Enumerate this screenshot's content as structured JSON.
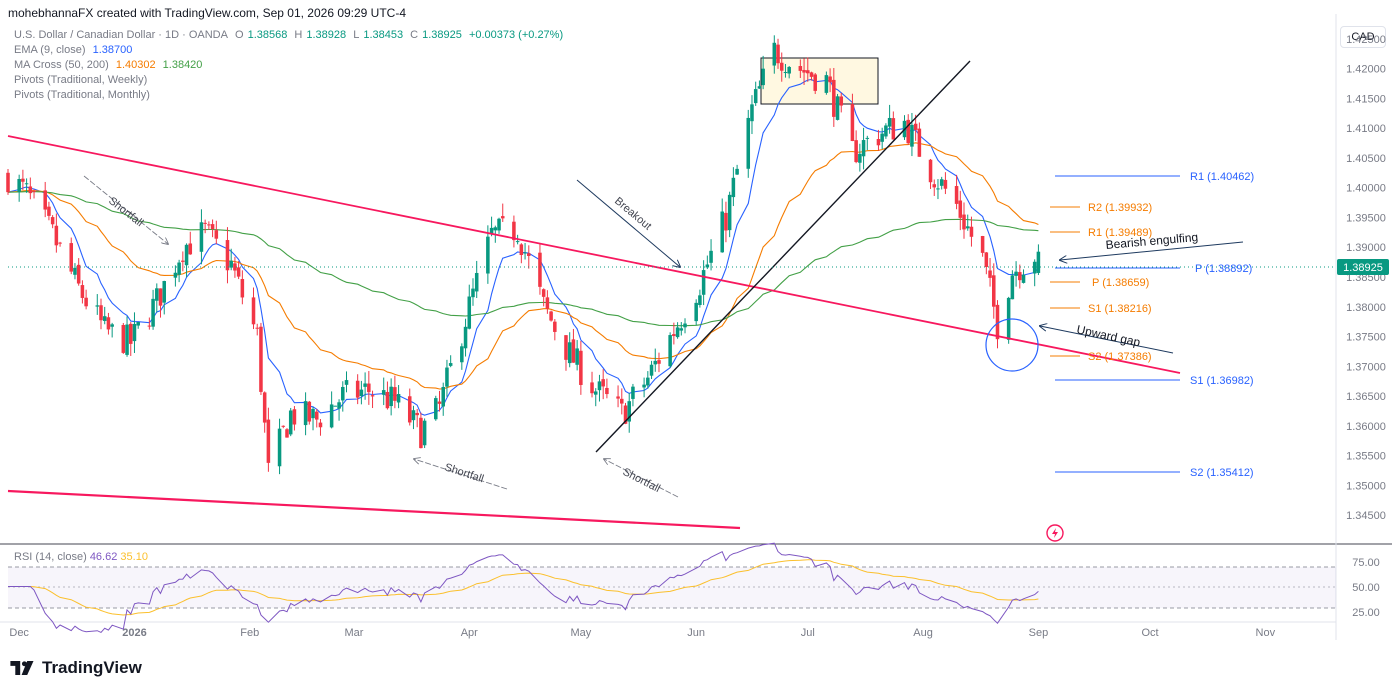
{
  "header": {
    "author_line": "mohebhannaFX created with TradingView.com, Sep 01, 2026 09:29 UTC-4",
    "currency": "CAD"
  },
  "legend": {
    "symbol": "U.S. Dollar / Canadian Dollar · 1D · OANDA",
    "o_label": "O",
    "o": "1.38568",
    "h_label": "H",
    "h": "1.38928",
    "l_label": "L",
    "l": "1.38453",
    "c_label": "C",
    "c": "1.38925",
    "change": "+0.00373 (+0.27%)",
    "ema_label": "EMA (9, close)",
    "ema_value": "1.38700",
    "ma_label": "MA Cross (50, 200)",
    "ma_value_1": "1.40302",
    "ma_value_2": "1.38420",
    "pivots_weekly": "Pivots (Traditional, Weekly)",
    "pivots_monthly": "Pivots (Traditional, Monthly)"
  },
  "price_axis": {
    "ticks": [
      "1.42500",
      "1.42000",
      "1.41500",
      "1.41000",
      "1.40500",
      "1.40000",
      "1.39500",
      "1.39000",
      "1.38500",
      "1.38000",
      "1.37500",
      "1.37000",
      "1.36500",
      "1.36000",
      "1.35500",
      "1.35000",
      "1.34500"
    ],
    "current_price_label": "1.38925"
  },
  "time_axis": {
    "labels": [
      "Dec",
      "2026",
      "Feb",
      "Mar",
      "Apr",
      "May",
      "Jun",
      "Jul",
      "Aug",
      "Sep",
      "Oct",
      "Nov"
    ]
  },
  "rsi": {
    "label": "RSI (14, close)",
    "value_1": "46.62",
    "value_2": "35.10",
    "ticks": [
      "75.00",
      "50.00",
      "25.00"
    ]
  },
  "annotations": {
    "shortfall_1": "Shortfall",
    "shortfall_2": "Shortfall",
    "shortfall_3": "Shortfall",
    "breakout": "Breakout",
    "bearish_engulfing": "Bearish engulfing",
    "upward_gap": "Upward gap"
  },
  "pivots": {
    "monthly_r1": "R1 (1.40462)",
    "monthly_p": "P (1.38892)",
    "monthly_s1": "S1 (1.36982)",
    "monthly_s2": "S2 (1.35412)",
    "weekly_r2": "R2 (1.39932)",
    "weekly_r1": "R1 (1.39489)",
    "weekly_p": "P (1.38659)",
    "weekly_s1": "S1 (1.38216)",
    "weekly_s2": "S2 (1.37386)"
  },
  "colors": {
    "up": "#089981",
    "down": "#f23645",
    "ema": "#2962ff",
    "ma50": "#f57c00",
    "ma200": "#43a047",
    "trendline": "#f7185e",
    "pivot_monthly": "#2962ff",
    "pivot_weekly": "#f57c00",
    "rsi": "#7e57c2",
    "rsi_ma": "#fbc02d"
  },
  "brand": "TradingView",
  "chart_data": {
    "type": "candlestick",
    "title": "U.S. Dollar / Canadian Dollar · 1D · OANDA",
    "ylim": [
      1.3425,
      1.4275
    ],
    "y_ticks": [
      1.425,
      1.42,
      1.415,
      1.41,
      1.405,
      1.4,
      1.395,
      1.39,
      1.385,
      1.38,
      1.375,
      1.37,
      1.365,
      1.36,
      1.355,
      1.35,
      1.345
    ],
    "x_labels": [
      "Dec",
      "2026",
      "Feb",
      "Mar",
      "Apr",
      "May",
      "Jun",
      "Jul",
      "Aug",
      "Sep",
      "Oct",
      "Nov"
    ],
    "close_path": [
      [
        "2025-11-28",
        1.402
      ],
      [
        "2025-12-03",
        1.399
      ],
      [
        "2025-12-10",
        1.392
      ],
      [
        "2025-12-17",
        1.383
      ],
      [
        "2025-12-24",
        1.376
      ],
      [
        "2025-12-31",
        1.374
      ],
      [
        "2026-01-07",
        1.381
      ],
      [
        "2026-01-14",
        1.39
      ],
      [
        "2026-01-20",
        1.3925
      ],
      [
        "2026-01-27",
        1.387
      ],
      [
        "2026-02-03",
        1.375
      ],
      [
        "2026-02-06",
        1.352
      ],
      [
        "2026-02-12",
        1.362
      ],
      [
        "2026-02-19",
        1.361
      ],
      [
        "2026-02-26",
        1.365
      ],
      [
        "2026-03-05",
        1.366
      ],
      [
        "2026-03-12",
        1.364
      ],
      [
        "2026-03-19",
        1.359
      ],
      [
        "2026-03-24",
        1.363
      ],
      [
        "2026-03-31",
        1.378
      ],
      [
        "2026-04-07",
        1.392
      ],
      [
        "2026-04-14",
        1.393
      ],
      [
        "2026-04-21",
        1.38
      ],
      [
        "2026-04-28",
        1.372
      ],
      [
        "2026-05-05",
        1.366
      ],
      [
        "2026-05-12",
        1.362
      ],
      [
        "2026-05-19",
        1.368
      ],
      [
        "2026-05-26",
        1.376
      ],
      [
        "2026-06-02",
        1.384
      ],
      [
        "2026-06-09",
        1.395
      ],
      [
        "2026-06-16",
        1.413
      ],
      [
        "2026-06-22",
        1.423
      ],
      [
        "2026-06-29",
        1.42
      ],
      [
        "2026-07-06",
        1.418
      ],
      [
        "2026-07-13",
        1.406
      ],
      [
        "2026-07-20",
        1.409
      ],
      [
        "2026-07-27",
        1.411
      ],
      [
        "2026-08-03",
        1.403
      ],
      [
        "2026-08-10",
        1.397
      ],
      [
        "2026-08-17",
        1.388
      ],
      [
        "2026-08-21",
        1.377
      ],
      [
        "2026-08-25",
        1.386
      ],
      [
        "2026-09-01",
        1.38925
      ]
    ],
    "series": [
      {
        "name": "EMA (9, close)",
        "last": 1.387
      },
      {
        "name": "MA Cross (50, 200)",
        "last": 1.40302
      },
      {
        "name": "MA Cross (50, 200)",
        "last": 1.3842
      }
    ],
    "horizontal_levels": {
      "monthly": {
        "R1": 1.40462,
        "P": 1.38892,
        "S1": 1.36982,
        "S2": 1.35412
      },
      "weekly": {
        "R2": 1.39932,
        "R1": 1.39489,
        "P": 1.38659,
        "S1": 1.38216,
        "S2": 1.37386
      }
    },
    "rsi": {
      "last": 46.62,
      "ma_last": 35.1,
      "ylim": [
        20,
        80
      ],
      "levels": [
        70,
        50,
        30
      ]
    }
  }
}
